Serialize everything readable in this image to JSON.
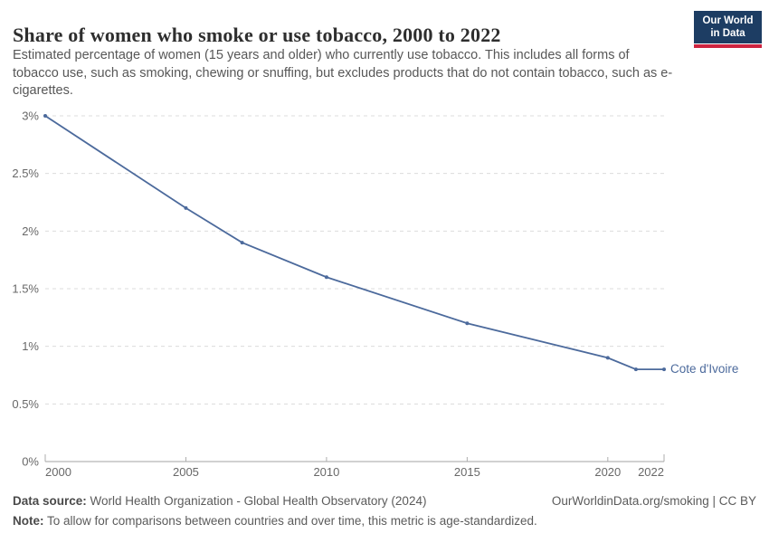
{
  "header": {
    "title": "Share of women who smoke or use tobacco, 2000 to 2022",
    "subtitle": "Estimated percentage of women (15 years and older) who currently use tobacco. This includes all forms of tobacco use, such as smoking, chewing or snuffing, but excludes products that do not contain tobacco, such as e-cigarettes.",
    "logo": {
      "line1": "Our World",
      "line2": "in Data"
    }
  },
  "chart_data": {
    "type": "line",
    "title": "Share of women who smoke or use tobacco, 2000 to 2022",
    "xlabel": "",
    "ylabel": "",
    "unit": "%",
    "xlim": [
      2000,
      2022
    ],
    "ylim": [
      0,
      3
    ],
    "grid": "horizontal-dashed",
    "legend_position": "end-of-line-label",
    "x_ticks": [
      {
        "value": 2000,
        "label": "2000"
      },
      {
        "value": 2005,
        "label": "2005"
      },
      {
        "value": 2010,
        "label": "2010"
      },
      {
        "value": 2015,
        "label": "2015"
      },
      {
        "value": 2020,
        "label": "2020"
      },
      {
        "value": 2022,
        "label": "2022"
      }
    ],
    "y_ticks": [
      {
        "value": 0,
        "label": "0%"
      },
      {
        "value": 0.5,
        "label": "0.5%"
      },
      {
        "value": 1,
        "label": "1%"
      },
      {
        "value": 1.5,
        "label": "1.5%"
      },
      {
        "value": 2,
        "label": "2%"
      },
      {
        "value": 2.5,
        "label": "2.5%"
      },
      {
        "value": 3,
        "label": "3%"
      }
    ],
    "series": [
      {
        "name": "Cote d'Ivoire",
        "color": "#4c6a9c",
        "points": [
          {
            "year": 2000,
            "value": 3.0
          },
          {
            "year": 2005,
            "value": 2.2
          },
          {
            "year": 2007,
            "value": 1.9
          },
          {
            "year": 2010,
            "value": 1.6
          },
          {
            "year": 2015,
            "value": 1.2
          },
          {
            "year": 2020,
            "value": 0.9
          },
          {
            "year": 2021,
            "value": 0.8
          },
          {
            "year": 2022,
            "value": 0.8
          }
        ]
      }
    ]
  },
  "footer": {
    "data_source_label": "Data source:",
    "data_source_text": " World Health Organization - Global Health Observatory (2024)",
    "credit": "OurWorldinData.org/smoking | CC BY",
    "note_label": "Note:",
    "note_text": " To allow for comparisons between countries and over time, this metric is age-standardized."
  },
  "colors": {
    "line": "#4c6a9c",
    "logo_bg": "#1d3d63",
    "logo_stripe": "#cd2440",
    "grid": "#dcdcdc",
    "axis": "#a3a3a3"
  }
}
